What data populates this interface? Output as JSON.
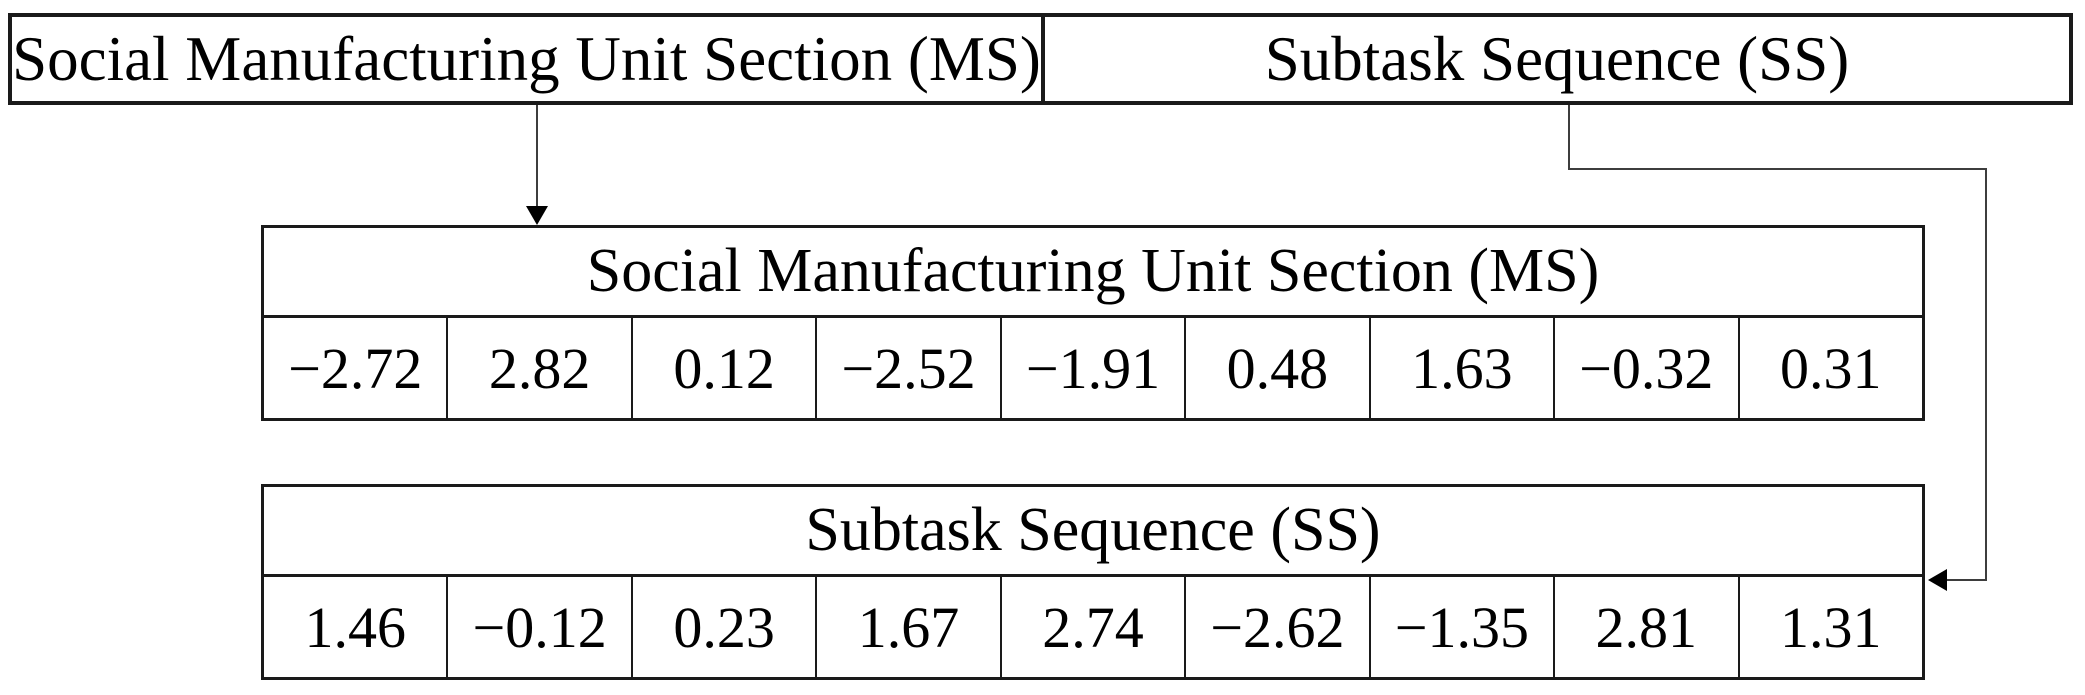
{
  "figure": {
    "description_visible_text_only": "",
    "top_row": {
      "ms_label": "Social Manufacturing Unit Section (MS)",
      "ss_label": "Subtask Sequence (SS)"
    },
    "ms_table": {
      "title": "Social Manufacturing Unit Section (MS)",
      "values": [
        "−2.72",
        "2.82",
        "0.12",
        "−2.52",
        "−1.91",
        "0.48",
        "1.63",
        "−0.32",
        "0.31"
      ]
    },
    "ss_table": {
      "title": "Subtask Sequence (SS)",
      "values": [
        "1.46",
        "−0.12",
        "0.23",
        "1.67",
        "2.74",
        "−2.62",
        "−1.35",
        "2.81",
        "1.31"
      ]
    }
  },
  "colors": {
    "background": "#ffffff",
    "border": "#1a1a1a",
    "connector": "#3d3d3d",
    "arrowhead": "#000000",
    "text": "#000000"
  }
}
